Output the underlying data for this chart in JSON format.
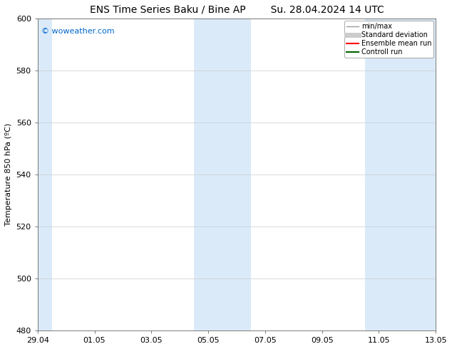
{
  "title_left": "ENS Time Series Baku / Bine AP",
  "title_right": "Su. 28.04.2024 14 UTC",
  "ylabel": "Temperature 850 hPa (ºC)",
  "ylim": [
    480,
    600
  ],
  "yticks": [
    480,
    500,
    520,
    540,
    560,
    580,
    600
  ],
  "xtick_labels": [
    "29.04",
    "01.05",
    "03.05",
    "05.05",
    "07.05",
    "09.05",
    "11.05",
    "13.05"
  ],
  "xtick_positions": [
    0,
    2,
    4,
    6,
    8,
    10,
    12,
    14
  ],
  "x_total_days": 14,
  "watermark": "© woweather.com",
  "watermark_color": "#0066cc",
  "background_color": "#ffffff",
  "shaded_bands": [
    {
      "x_start": 0,
      "x_end": 0.5,
      "color": "#daeaf8"
    },
    {
      "x_start": 5.5,
      "x_end": 7.5,
      "color": "#daeaf8"
    },
    {
      "x_start": 11.5,
      "x_end": 14,
      "color": "#daeaf8"
    }
  ],
  "legend_entries": [
    {
      "label": "min/max",
      "color": "#999999",
      "lw": 1.0,
      "style": "solid"
    },
    {
      "label": "Standard deviation",
      "color": "#cccccc",
      "lw": 5,
      "style": "solid"
    },
    {
      "label": "Ensemble mean run",
      "color": "#ff0000",
      "lw": 1.5,
      "style": "solid"
    },
    {
      "label": "Controll run",
      "color": "#006600",
      "lw": 1.5,
      "style": "solid"
    }
  ],
  "title_fontsize": 10,
  "axis_fontsize": 8,
  "tick_fontsize": 8,
  "legend_fontsize": 7
}
